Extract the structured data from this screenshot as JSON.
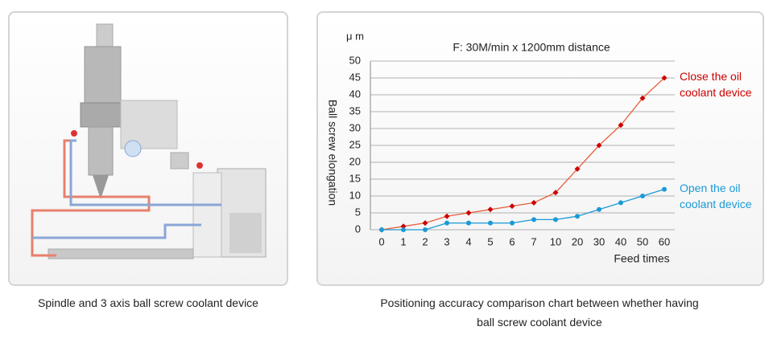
{
  "panels": {
    "left": {
      "caption": "Spindle and 3 axis ball screw coolant device"
    },
    "right": {
      "caption": "Positioning accuracy comparison chart between whether having ball screw coolant device"
    }
  },
  "chart_data": {
    "type": "line",
    "title": "F: 30M/min x 1200mm  distance",
    "unit_label": "μ m",
    "y_label": "Ball screw elongation",
    "x_label": "Feed times",
    "categories": [
      "0",
      "1",
      "2",
      "3",
      "4",
      "5",
      "6",
      "7",
      "10",
      "20",
      "30",
      "40",
      "50",
      "60"
    ],
    "series": [
      {
        "name": "Close the oil coolant device",
        "color": "#e8603c",
        "label_color": "#cc0000",
        "marker": "diamond",
        "values": [
          0,
          1,
          2,
          4,
          5,
          6,
          7,
          8,
          11,
          18,
          25,
          31,
          39,
          45
        ]
      },
      {
        "name": "Open the oil coolant device",
        "color": "#1a9ad6",
        "label_color": "#1a9ad6",
        "marker": "circle",
        "values": [
          0,
          0,
          0,
          2,
          2,
          2,
          2,
          3,
          3,
          4,
          6,
          8,
          10,
          12
        ]
      }
    ],
    "ylim": [
      0,
      50
    ],
    "yticks": [
      0,
      5,
      10,
      15,
      20,
      25,
      30,
      35,
      40,
      45,
      50
    ],
    "grid": true
  }
}
